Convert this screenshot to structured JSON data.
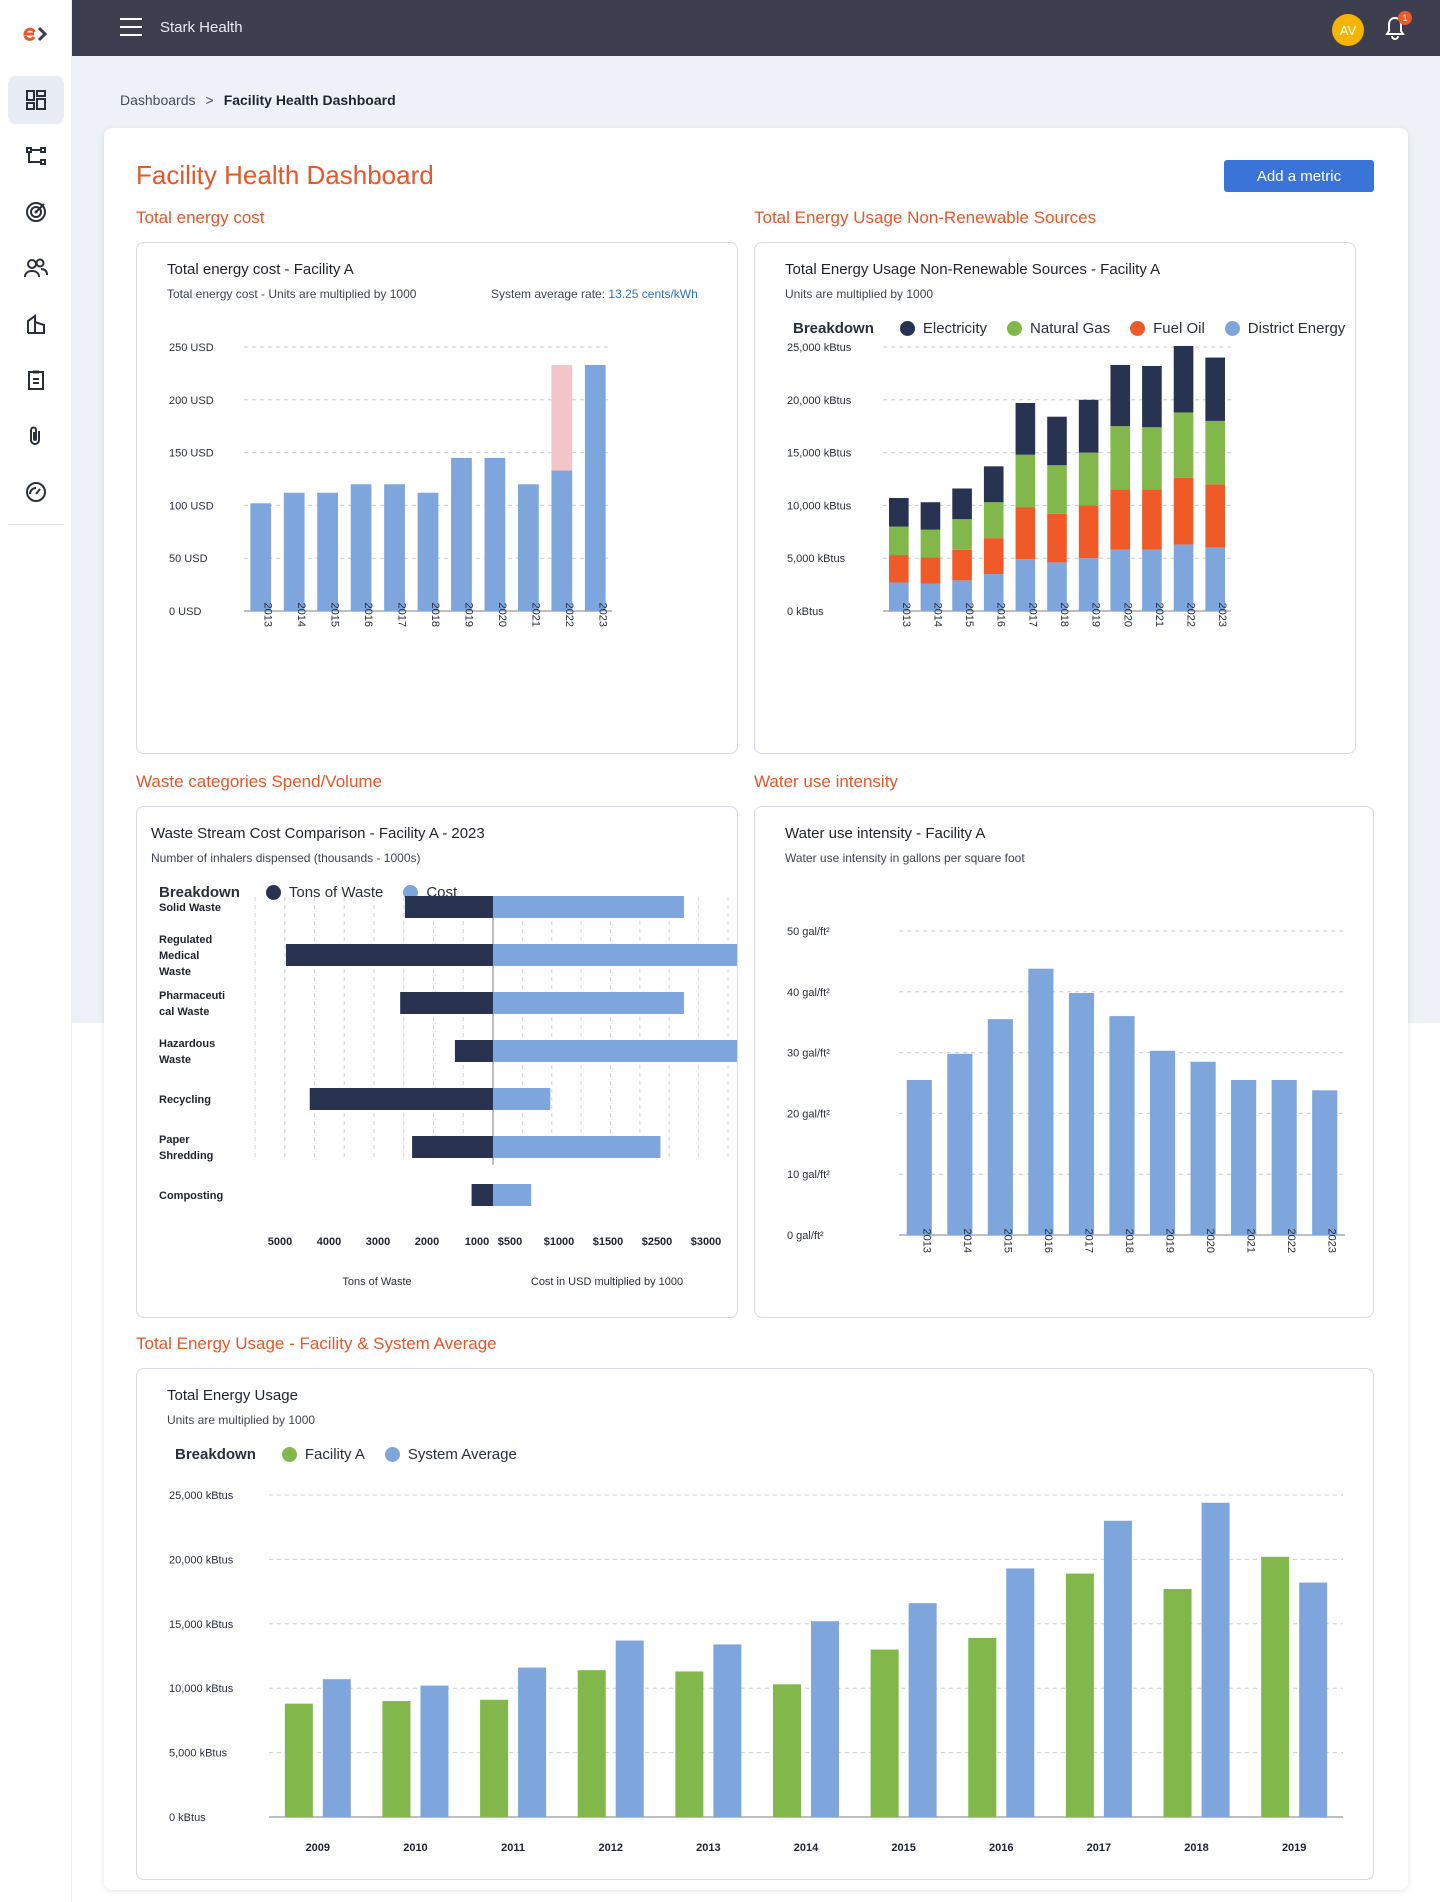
{
  "app": {
    "title": "Stark Health",
    "user_initials": "AV",
    "notification_count": "1",
    "add_metric_label": "Add a metric"
  },
  "breadcrumb": {
    "parent": "Dashboards",
    "separator": ">",
    "current": "Facility Health Dashboard"
  },
  "page": {
    "title": "Facility Health Dashboard"
  },
  "sidebar": {
    "items": [
      {
        "icon": "dashboard-icon"
      },
      {
        "icon": "workflow-icon"
      },
      {
        "icon": "target-icon"
      },
      {
        "icon": "users-icon"
      },
      {
        "icon": "building-icon"
      },
      {
        "icon": "clipboard-icon"
      },
      {
        "icon": "attachment-icon"
      },
      {
        "icon": "speedometer-icon"
      }
    ]
  },
  "colors": {
    "accent": "#e8562a",
    "primary": "#3a74d8",
    "bar": "#7fa5dd",
    "navy": "#283352",
    "green": "#82b74b",
    "orange": "#f05a28",
    "highlight": "#f4c5c8"
  },
  "sections": {
    "energy_cost": {
      "section_title": "Total energy cost",
      "panel_title": "Total energy cost - Facility A",
      "subtitle": "Total energy cost - Units are multiplied by 1000",
      "rate_label": "System average rate:",
      "rate_value": "13.25 cents/kWh"
    },
    "nonrenewable": {
      "section_title": "Total Energy Usage Non-Renewable Sources",
      "panel_title": "Total Energy Usage Non-Renewable Sources - Facility A",
      "subtitle": "Units are multiplied by 1000",
      "legend_label": "Breakdown"
    },
    "waste": {
      "section_title": "Waste categories Spend/Volume",
      "panel_title": "Waste Stream Cost Comparison - Facility A - 2023",
      "subtitle": "Number of inhalers dispensed (thousands - 1000s)",
      "legend_label": "Breakdown"
    },
    "water": {
      "section_title": "Water use intensity",
      "panel_title": "Water use intensity - Facility A",
      "subtitle": "Water use intensity in gallons per square foot"
    },
    "total_usage": {
      "section_title": "Total Energy Usage - Facility & System Average",
      "panel_title": "Total Energy Usage",
      "subtitle": "Units are multiplied by 1000",
      "legend_label": "Breakdown"
    }
  },
  "chart_data": [
    {
      "id": "energy_cost",
      "type": "bar",
      "categories": [
        "2013",
        "2014",
        "2015",
        "2016",
        "2017",
        "2018",
        "2019",
        "2020",
        "2021",
        "2022",
        "2023"
      ],
      "values": [
        102,
        112,
        112,
        120,
        120,
        112,
        145,
        145,
        120,
        133,
        233
      ],
      "highlight": {
        "category": "2022",
        "from": 133,
        "to": 233
      },
      "ylim": [
        0,
        250
      ],
      "yticks": [
        "0   USD",
        "50   USD",
        "100   USD",
        "150   USD",
        "200   USD",
        "250   USD"
      ],
      "grid": true
    },
    {
      "id": "nonrenewable",
      "type": "bar",
      "stacked": true,
      "categories": [
        "2013",
        "2014",
        "2015",
        "2016",
        "2017",
        "2018",
        "2019",
        "2020",
        "2021",
        "2022",
        "2023"
      ],
      "series": [
        {
          "name": "District Energy",
          "color": "#7fa5dd",
          "values": [
            2700,
            2600,
            2900,
            3500,
            4900,
            4600,
            5000,
            5800,
            5800,
            6300,
            6000
          ]
        },
        {
          "name": "Fuel Oil",
          "color": "#f05a28",
          "values": [
            2600,
            2500,
            2900,
            3400,
            4900,
            4600,
            5000,
            5700,
            5700,
            6300,
            6000
          ]
        },
        {
          "name": "Natural Gas",
          "color": "#82b74b",
          "values": [
            2700,
            2600,
            2900,
            3400,
            5000,
            4600,
            5000,
            6000,
            5900,
            6200,
            6000
          ]
        },
        {
          "name": "Electricity",
          "color": "#283352",
          "values": [
            2700,
            2600,
            2900,
            3400,
            4900,
            4600,
            5000,
            5800,
            5800,
            6300,
            6000
          ]
        }
      ],
      "legend_order": [
        "Electricity",
        "Natural Gas",
        "Fuel Oil",
        "District Energy"
      ],
      "ylim": [
        0,
        25000
      ],
      "yticks": [
        "0      kBtus",
        "5,000   kBtus",
        "10,000   kBtus",
        "15,000   kBtus",
        "20,000   kBtus",
        "25,000   kBtus"
      ],
      "grid": true
    },
    {
      "id": "waste",
      "type": "bar",
      "orientation": "horizontal",
      "categories": [
        [
          "Solid Waste"
        ],
        [
          "Regulated",
          "Medical",
          "Waste"
        ],
        [
          "Pharmaceuti",
          "cal Waste"
        ],
        [
          "Hazardous",
          "Waste"
        ],
        [
          "Recycling"
        ],
        [
          "Paper",
          "Shredding"
        ],
        [
          "Composting"
        ]
      ],
      "series": [
        {
          "name": "Tons of Waste",
          "color": "#283352",
          "values": [
            1850,
            4350,
            1950,
            800,
            3850,
            1700,
            450
          ]
        },
        {
          "name": "Cost",
          "color": "#7fa5dd",
          "values": [
            2600,
            3450,
            2600,
            3400,
            780,
            2280,
            520
          ]
        }
      ],
      "left_ticks": [
        "5000",
        "4000",
        "3000",
        "2000",
        "1000"
      ],
      "right_ticks": [
        "$500",
        "$1000",
        "$1500",
        "$2500",
        "$3000"
      ],
      "xlabel_left": "Tons of Waste",
      "xlabel_right": "Cost in USD multiplied by 1000"
    },
    {
      "id": "water",
      "type": "bar",
      "categories": [
        "2013",
        "2014",
        "2015",
        "2016",
        "2017",
        "2018",
        "2019",
        "2020",
        "2021",
        "2022",
        "2023"
      ],
      "values": [
        25.5,
        29.8,
        35.5,
        43.8,
        39.8,
        36,
        30.3,
        28.5,
        25.5,
        25.5,
        23.8
      ],
      "ylim": [
        0,
        50
      ],
      "yticks": [
        "0  gal/ft²",
        "10  gal/ft²",
        "20  gal/ft²",
        "30  gal/ft²",
        "40  gal/ft²",
        "50  gal/ft²"
      ],
      "grid": true
    },
    {
      "id": "total_usage",
      "type": "bar",
      "categories": [
        "2009",
        "2010",
        "2011",
        "2012",
        "2013",
        "2014",
        "2015",
        "2016",
        "2017",
        "2018",
        "2019"
      ],
      "series": [
        {
          "name": "Facility A",
          "color": "#82b74b",
          "values": [
            8800,
            9000,
            9100,
            11400,
            11300,
            10300,
            13000,
            13900,
            18900,
            17700,
            20200
          ]
        },
        {
          "name": "System Average",
          "color": "#7fa5dd",
          "values": [
            10700,
            10200,
            11600,
            13700,
            13400,
            15200,
            16600,
            19300,
            23000,
            24400,
            18200
          ]
        }
      ],
      "ylim": [
        0,
        25000
      ],
      "yticks": [
        "0      kBtus",
        "5,000   kBtus",
        "10,000   kBtus",
        "15,000   kBtus",
        "20,000   kBtus",
        "25,000   kBtus"
      ],
      "grid": true
    }
  ]
}
